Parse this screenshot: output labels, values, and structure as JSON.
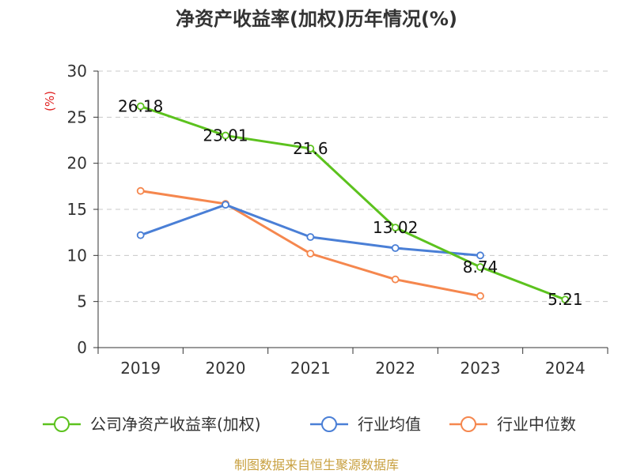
{
  "chart_data": {
    "type": "line",
    "title": "净资产收益率(加权)历年情况(%)",
    "ylabel": "(%)",
    "xlabel": "",
    "categories": [
      "2019",
      "2020",
      "2021",
      "2022",
      "2023",
      "2024"
    ],
    "ylim": [
      0,
      30
    ],
    "yticks": [
      0,
      5,
      10,
      15,
      20,
      25,
      30
    ],
    "grid": true,
    "legend_position": "bottom",
    "series": [
      {
        "name": "公司净资产收益率(加权)",
        "color": "#5cc21e",
        "values": [
          26.18,
          23.01,
          21.6,
          13.02,
          8.74,
          5.21
        ],
        "labels": [
          "26.18",
          "23.01",
          "21.6",
          "13.02",
          "8.74",
          "5.21"
        ]
      },
      {
        "name": "行业均值",
        "color": "#4a7fd6",
        "values": [
          12.2,
          15.5,
          12.0,
          10.8,
          10.0,
          null
        ]
      },
      {
        "name": "行业中位数",
        "color": "#f5874e",
        "values": [
          17.0,
          15.6,
          10.2,
          7.4,
          5.6,
          null
        ]
      }
    ],
    "source": "制图数据来自恒生聚源数据库"
  }
}
